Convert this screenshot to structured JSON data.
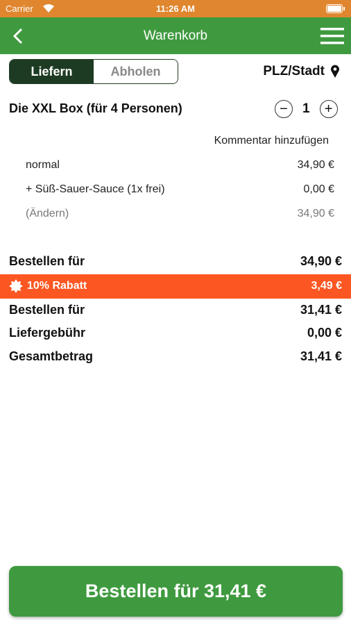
{
  "status_bar": {
    "carrier": "Carrier",
    "time": "11:26 AM"
  },
  "nav": {
    "title": "Warenkorb"
  },
  "tabs": [
    "Liefern",
    "Abholen"
  ],
  "location": "PLZ/Stadt",
  "item": {
    "name": "Die XXL Box (für 4 Personen)",
    "quantity": 1,
    "comment_link": "Kommentar hinzufügen",
    "lines": [
      {
        "label": "normal",
        "price": "34,90 €"
      },
      {
        "label": "+ Süß-Sauer-Sauce (1x frei)",
        "price": "0,00 €"
      },
      {
        "label": "(Ändern)",
        "price": "34,90 €"
      }
    ]
  },
  "summary": {
    "subtotal": {
      "label": "Bestellen für",
      "amount": "34,90 €"
    },
    "discount": {
      "label": "10% Rabatt",
      "amount": "3,49 €"
    },
    "rows": [
      {
        "label": "Bestellen für",
        "amount": "31,41 €"
      },
      {
        "label": "Liefergebühr",
        "amount": "0,00 €"
      },
      {
        "label": "Gesamtbetrag",
        "amount": "31,41 €"
      }
    ]
  },
  "order_button": "Bestellen für 31,41 €"
}
